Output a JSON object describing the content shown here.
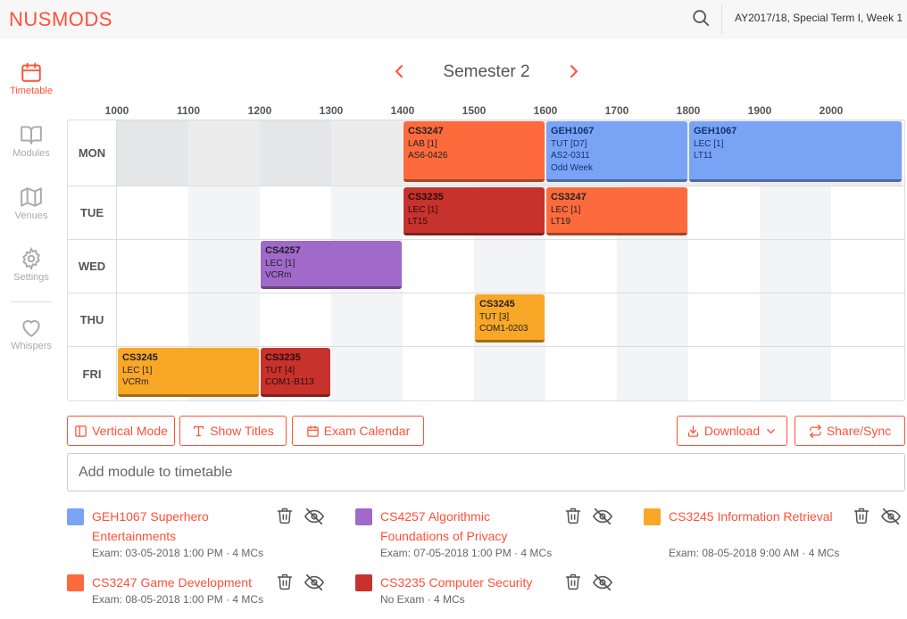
{
  "header": {
    "logo": "NUSMODS",
    "week": "AY2017/18, Special Term I, Week 1"
  },
  "sidebar": {
    "items": [
      {
        "label": "Timetable",
        "icon": "calendar-icon"
      },
      {
        "label": "Modules",
        "icon": "book-icon"
      },
      {
        "label": "Venues",
        "icon": "map-icon"
      },
      {
        "label": "Settings",
        "icon": "gear-icon"
      },
      {
        "label": "Whispers",
        "icon": "heart-icon"
      }
    ]
  },
  "semester": "Semester 2",
  "timetable": {
    "hours": [
      "1000",
      "1100",
      "1200",
      "1300",
      "1400",
      "1500",
      "1600",
      "1700",
      "1800",
      "1900",
      "2000"
    ],
    "days": [
      "MON",
      "TUE",
      "WED",
      "THU",
      "FRI"
    ],
    "lessons": [
      {
        "day": 0,
        "code": "CS3247",
        "type": "LAB [1]",
        "venue": "AS6-0426",
        "extra": "",
        "start": 1400,
        "end": 1600,
        "color": "#fd6a3b",
        "text": "#222"
      },
      {
        "day": 0,
        "code": "GEH1067",
        "type": "TUT [D7]",
        "venue": "AS2-0311",
        "extra": "Odd Week",
        "start": 1600,
        "end": 1800,
        "color": "#79a4f6",
        "text": "#14326e"
      },
      {
        "day": 0,
        "code": "GEH1067",
        "type": "LEC [1]",
        "venue": "LT11",
        "extra": "",
        "start": 1800,
        "end": 2100,
        "color": "#79a4f6",
        "text": "#14326e"
      },
      {
        "day": 1,
        "code": "CS3235",
        "type": "LEC [1]",
        "venue": "LT15",
        "extra": "",
        "start": 1400,
        "end": 1600,
        "color": "#c8322c",
        "text": "#2a0a0a"
      },
      {
        "day": 1,
        "code": "CS3247",
        "type": "LEC [1]",
        "venue": "LT19",
        "extra": "",
        "start": 1600,
        "end": 1800,
        "color": "#fd6a3b",
        "text": "#222"
      },
      {
        "day": 2,
        "code": "CS4257",
        "type": "LEC [1]",
        "venue": "VCRm",
        "extra": "",
        "start": 1200,
        "end": 1400,
        "color": "#a069ca",
        "text": "#222"
      },
      {
        "day": 3,
        "code": "CS3245",
        "type": "TUT [3]",
        "venue": "COM1-0203",
        "extra": "",
        "start": 1500,
        "end": 1600,
        "color": "#f9a727",
        "text": "#222"
      },
      {
        "day": 4,
        "code": "CS3245",
        "type": "LEC [1]",
        "venue": "VCRm",
        "extra": "",
        "start": 1000,
        "end": 1200,
        "color": "#f9a727",
        "text": "#222"
      },
      {
        "day": 4,
        "code": "CS3235",
        "type": "TUT [4]",
        "venue": "COM1-B113",
        "extra": "",
        "start": 1200,
        "end": 1300,
        "color": "#c8322c",
        "text": "#2a0a0a"
      }
    ]
  },
  "toolbar": {
    "vertical_mode": "Vertical Mode",
    "show_titles": "Show Titles",
    "exam_calendar": "Exam Calendar",
    "download": "Download",
    "share_sync": "Share/Sync"
  },
  "add_module": {
    "placeholder": "Add module to timetable"
  },
  "modules": [
    {
      "title": "GEH1067 Superhero Entertainments",
      "meta": "Exam: 03-05-2018 1:00 PM · 4 MCs",
      "color": "#79a4f6"
    },
    {
      "title": "CS4257 Algorithmic Foundations of Privacy",
      "meta": "Exam: 07-05-2018 1:00 PM · 4 MCs",
      "color": "#a069ca"
    },
    {
      "title": "CS3245 Information Retrieval",
      "meta": "Exam: 08-05-2018 9:00 AM · 4 MCs",
      "color": "#f9a727"
    },
    {
      "title": "CS3247 Game Development",
      "meta": "Exam: 08-05-2018 1:00 PM · 4 MCs",
      "color": "#fd6a3b"
    },
    {
      "title": "CS3235 Computer Security",
      "meta": "No Exam · 4 MCs",
      "color": "#c8322c"
    }
  ],
  "colors": {
    "accent": "#ff5138"
  }
}
